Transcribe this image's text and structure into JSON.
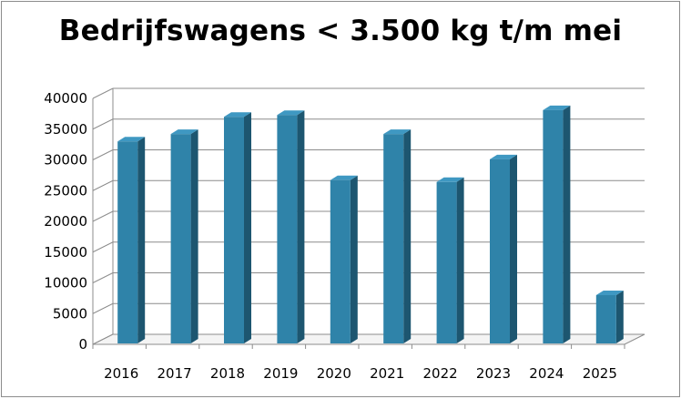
{
  "chart_data": {
    "type": "bar",
    "title": "Bedrijfswagens < 3.500 kg t/m mei",
    "xlabel": "",
    "ylabel": "",
    "categories": [
      "2016",
      "2017",
      "2018",
      "2019",
      "2020",
      "2021",
      "2022",
      "2023",
      "2024",
      "2025"
    ],
    "values": [
      33000,
      34200,
      37000,
      37300,
      26700,
      34200,
      26400,
      30100,
      38100,
      8000
    ],
    "ylim": [
      0,
      40000
    ],
    "yticks": [
      "0",
      "5000",
      "10000",
      "15000",
      "20000",
      "25000",
      "30000",
      "35000",
      "40000"
    ],
    "grid": true,
    "legend": "none",
    "colors": {
      "bar_front": "#2f83a9",
      "bar_side": "#1d5670",
      "bar_top": "#3f98c2",
      "grid": "#8c8c8c"
    }
  }
}
